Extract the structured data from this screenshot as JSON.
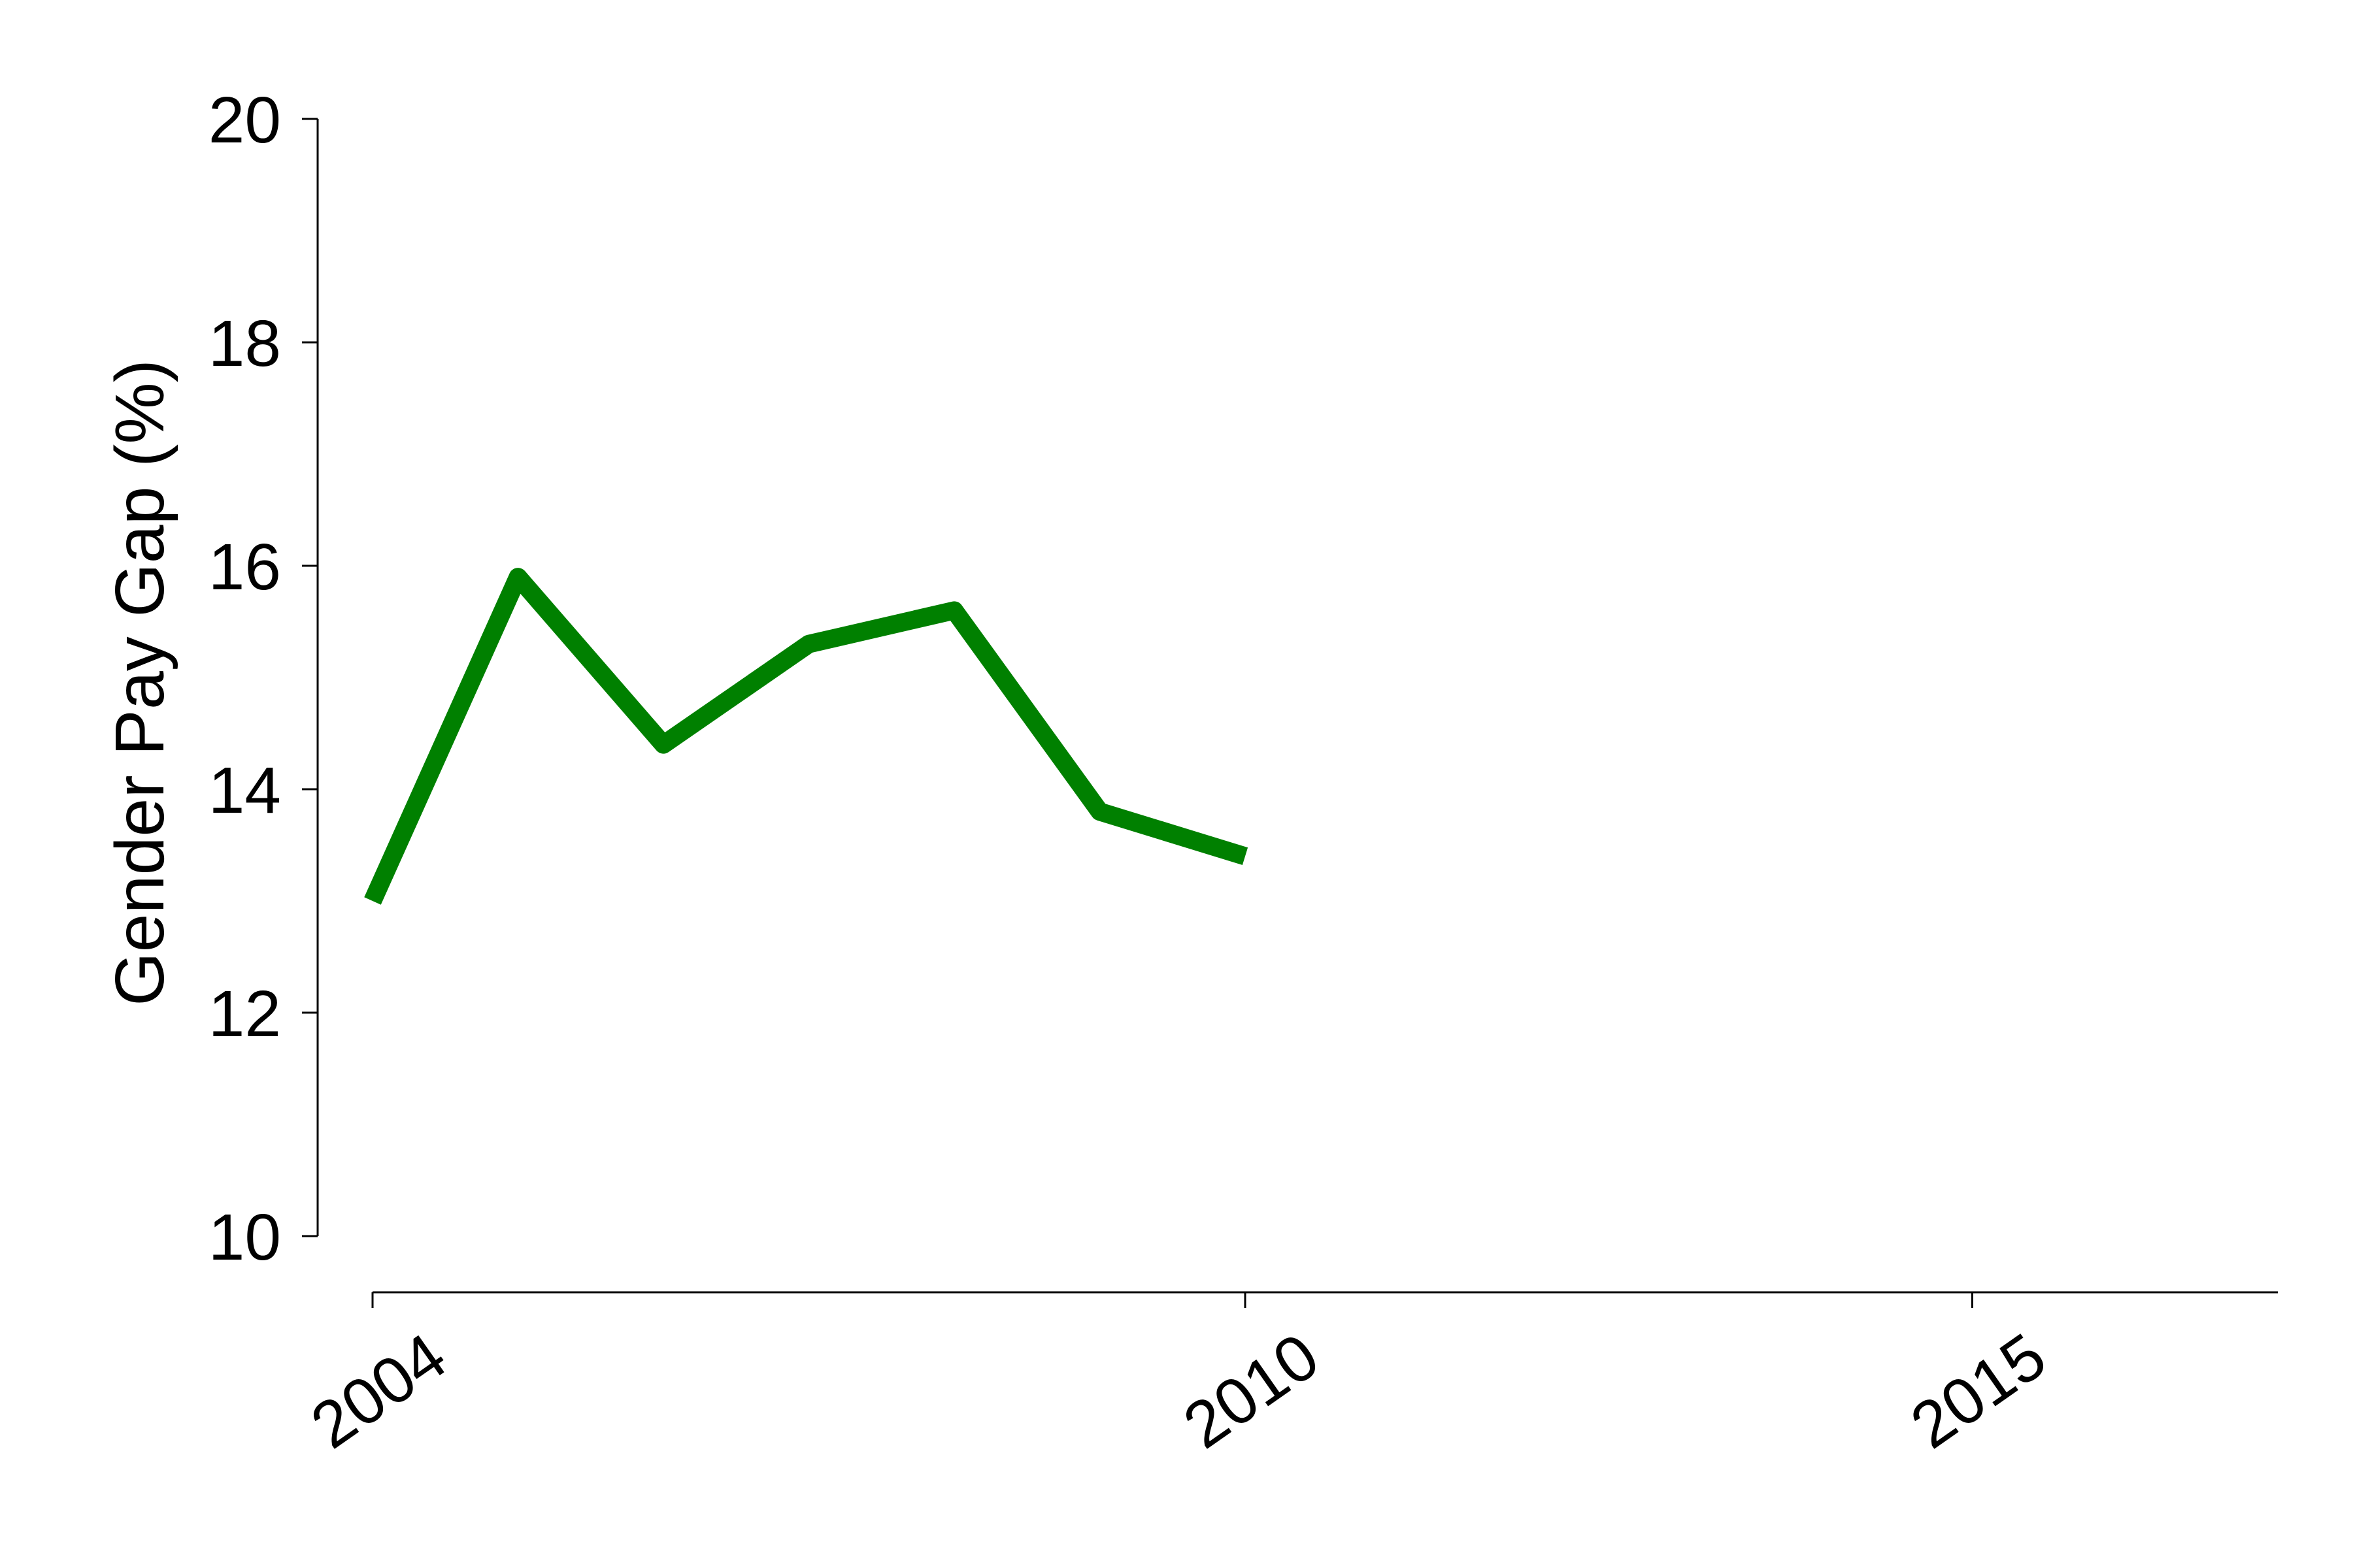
{
  "chart_data": {
    "type": "line",
    "title": "",
    "xlabel": "",
    "ylabel": "Gender Pay Gap (%)",
    "xlim": [
      2004,
      2016
    ],
    "ylim": [
      10,
      20
    ],
    "x_ticks": [
      2004,
      2010,
      2015
    ],
    "x_tick_labels": [
      "2004",
      "2010",
      "2015"
    ],
    "y_ticks": [
      10,
      12,
      14,
      16,
      18,
      20
    ],
    "y_tick_labels": [
      "10",
      "12",
      "14",
      "16",
      "18",
      "20"
    ],
    "grid": false,
    "series": [
      {
        "color": "#008000",
        "x": [
          2004,
          2005,
          2006,
          2007,
          2008,
          2009,
          2010
        ],
        "values": [
          13.0,
          15.9,
          14.4,
          15.3,
          15.6,
          13.8,
          13.4
        ]
      }
    ]
  }
}
